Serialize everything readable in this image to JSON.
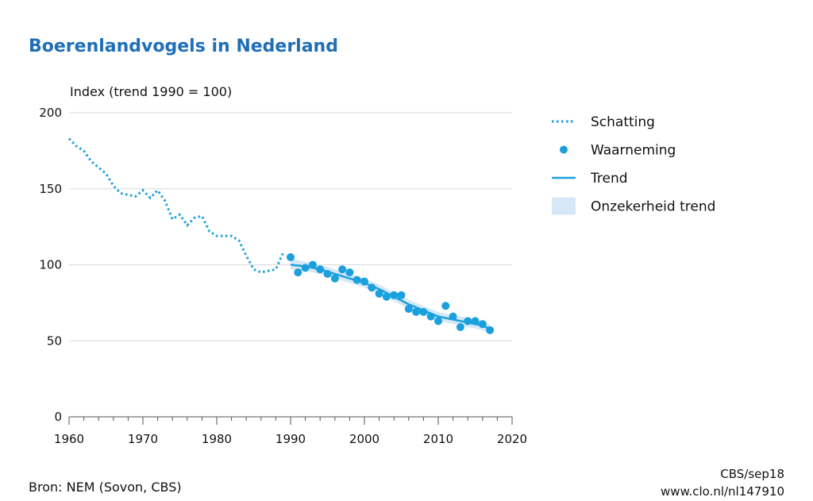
{
  "title": "Boerenlandvogels in Nederland",
  "source": "Bron: NEM (Sovon, CBS)",
  "credit_line1": "CBS/sep18",
  "credit_line2": "www.clo.nl/nl147910",
  "colors": {
    "accent": "#1f6fb6",
    "series": "#1aa0dc",
    "band": "#d6e8f8",
    "grid": "#d8d8d8"
  },
  "chart_data": {
    "type": "line",
    "ylabel": "Index (trend 1990 = 100)",
    "xlim": [
      1960,
      2020
    ],
    "ylim": [
      0,
      200
    ],
    "xticks": [
      1960,
      1970,
      1980,
      1990,
      2000,
      2010,
      2020
    ],
    "yticks": [
      0,
      50,
      100,
      150,
      200
    ],
    "grid": "horizontal",
    "legend_position": "right",
    "legend": [
      "Schatting",
      "Waarneming",
      "Trend",
      "Onzekerheid trend"
    ],
    "series": [
      {
        "name": "Schatting",
        "style": "dotted",
        "x": [
          1960,
          1961,
          1962,
          1963,
          1964,
          1965,
          1966,
          1967,
          1968,
          1969,
          1970,
          1971,
          1972,
          1973,
          1974,
          1975,
          1976,
          1977,
          1978,
          1979,
          1980,
          1981,
          1982,
          1983,
          1984,
          1985,
          1986,
          1987,
          1988,
          1989
        ],
        "y": [
          183,
          178,
          175,
          168,
          164,
          160,
          152,
          147,
          146,
          145,
          149,
          144,
          149,
          142,
          130,
          133,
          126,
          131,
          132,
          122,
          119,
          119,
          119,
          116,
          106,
          97,
          95,
          96,
          97,
          108
        ]
      },
      {
        "name": "Waarneming",
        "style": "points",
        "x": [
          1990,
          1991,
          1992,
          1993,
          1994,
          1995,
          1996,
          1997,
          1998,
          1999,
          2000,
          2001,
          2002,
          2003,
          2004,
          2005,
          2006,
          2007,
          2008,
          2009,
          2010,
          2011,
          2012,
          2013,
          2014,
          2015,
          2016,
          2017
        ],
        "y": [
          105,
          95,
          98,
          100,
          97,
          94,
          91,
          97,
          95,
          90,
          89,
          85,
          81,
          79,
          80,
          80,
          71,
          69,
          69,
          66,
          63,
          73,
          66,
          59,
          63,
          63,
          61,
          57
        ]
      },
      {
        "name": "Trend",
        "style": "line",
        "x": [
          1990,
          1992,
          1994,
          1996,
          1998,
          2000,
          2002,
          2004,
          2006,
          2008,
          2010,
          2012,
          2014,
          2016,
          2017
        ],
        "y": [
          100,
          99,
          97,
          94,
          91,
          88,
          84,
          79,
          74,
          70,
          66,
          64,
          62,
          60,
          58
        ]
      },
      {
        "name": "Onzekerheid trend",
        "style": "band",
        "x": [
          1990,
          1992,
          1994,
          1996,
          1998,
          2000,
          2002,
          2004,
          2006,
          2008,
          2010,
          2012,
          2014,
          2016,
          2017
        ],
        "lower": [
          97,
          96,
          94,
          91,
          88,
          85,
          81,
          76,
          71,
          67,
          63,
          61,
          59,
          57,
          55
        ],
        "upper": [
          104,
          102,
          100,
          97,
          94,
          91,
          87,
          82,
          77,
          73,
          69,
          67,
          65,
          63,
          61
        ]
      }
    ]
  }
}
